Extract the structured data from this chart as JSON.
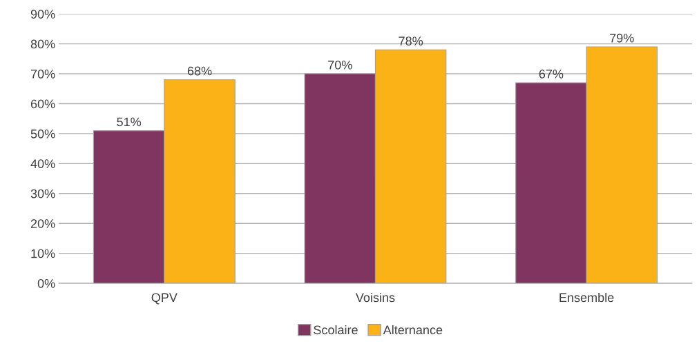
{
  "chart_data": {
    "type": "bar",
    "categories": [
      "QPV",
      "Voisins",
      "Ensemble"
    ],
    "series": [
      {
        "name": "Scolaire",
        "color": "#7f3560",
        "values": [
          51,
          70,
          67
        ],
        "value_labels": [
          "51%",
          "70%",
          "67%"
        ]
      },
      {
        "name": "Alternance",
        "color": "#fbb216",
        "values": [
          68,
          78,
          79
        ],
        "value_labels": [
          "68%",
          "78%",
          "79%"
        ]
      }
    ],
    "ylim": [
      0,
      90
    ],
    "yticks": [
      {
        "value": 0,
        "label": "0%"
      },
      {
        "value": 10,
        "label": "10%"
      },
      {
        "value": 20,
        "label": "20%"
      },
      {
        "value": 30,
        "label": "30%"
      },
      {
        "value": 40,
        "label": "40%"
      },
      {
        "value": 50,
        "label": "50%"
      },
      {
        "value": 60,
        "label": "60%"
      },
      {
        "value": 70,
        "label": "70%"
      },
      {
        "value": 80,
        "label": "80%"
      },
      {
        "value": 90,
        "label": "90%"
      }
    ],
    "grid": "y",
    "legend": "bottom"
  }
}
